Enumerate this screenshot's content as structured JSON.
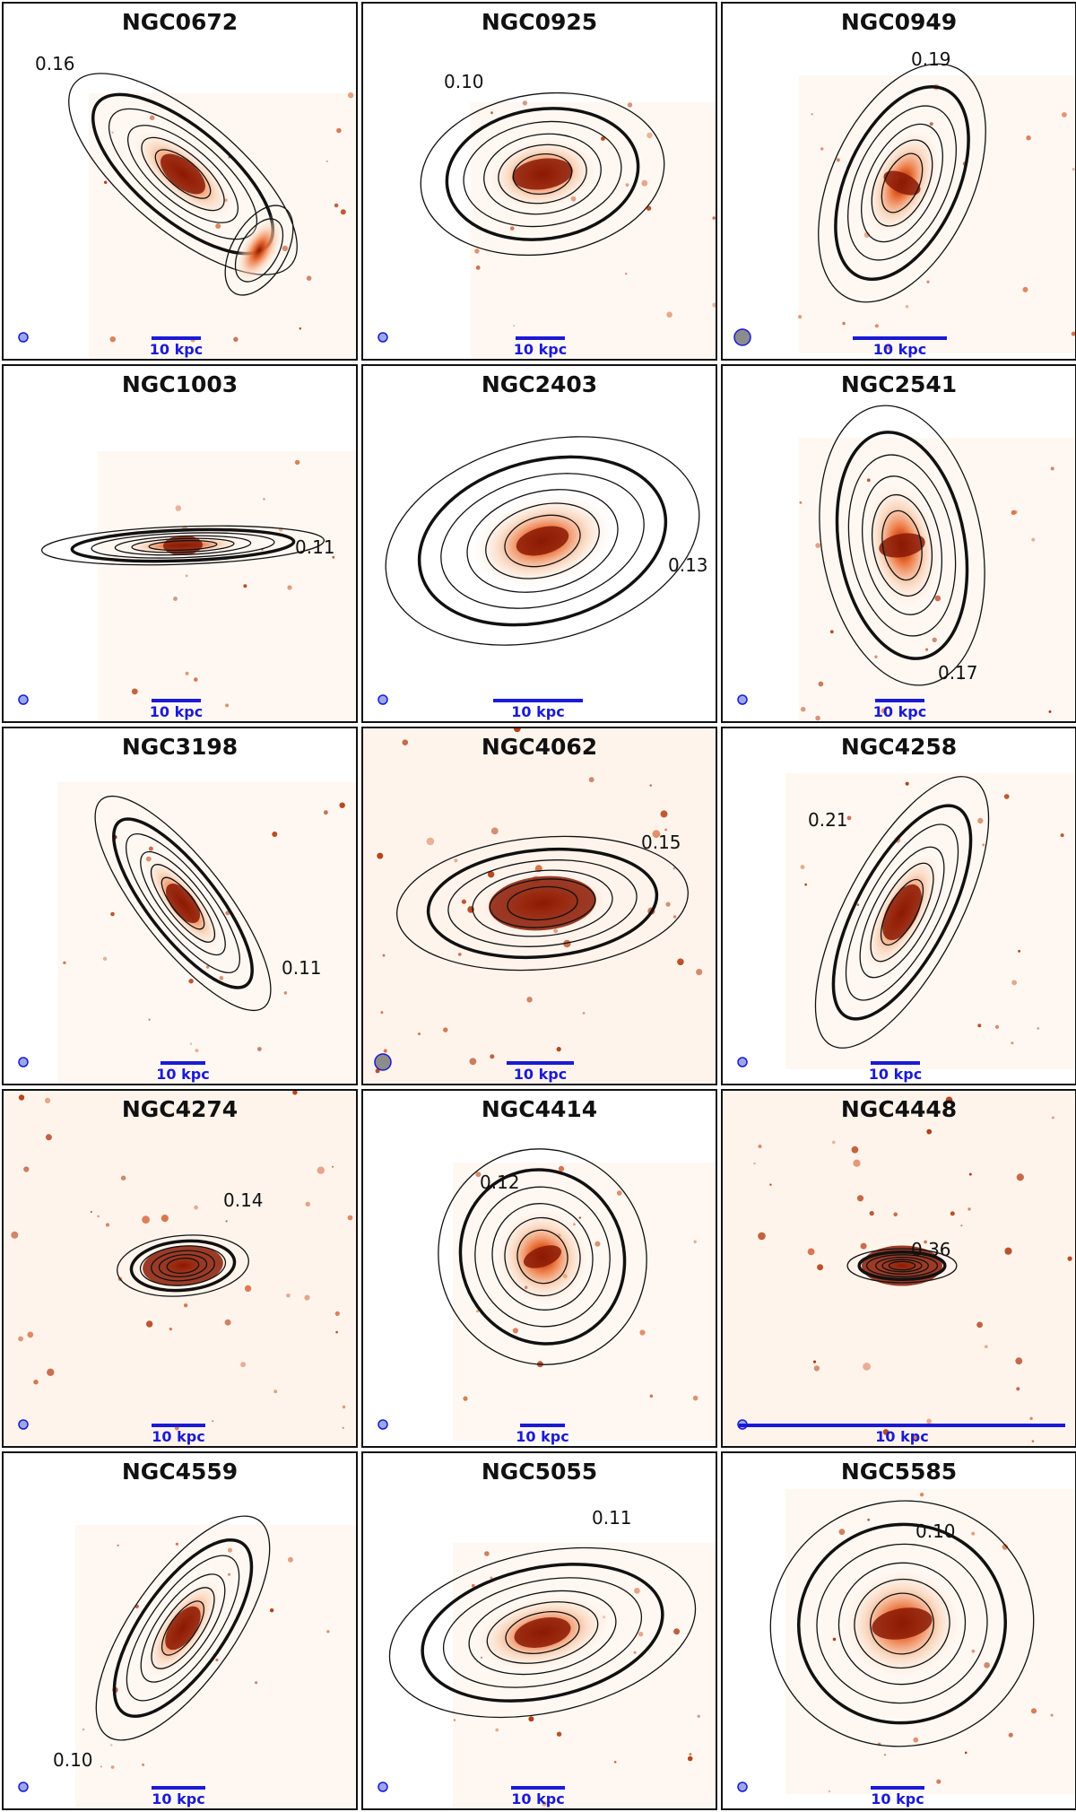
{
  "colors": {
    "core": "#8a1a05",
    "glow": "#e8642a",
    "halo": "#f8c9a8",
    "contour": "#111111",
    "scalebar": "#1a1ad6",
    "beam_blue": "#9aa8e8",
    "beam_gray": "#8c8c8c"
  },
  "panels": [
    {
      "name": "NGC0672",
      "scale_label": "10 kpc",
      "contour_label": "0.16",
      "beam": "blue"
    },
    {
      "name": "NGC0925",
      "scale_label": "10 kpc",
      "contour_label": "0.10",
      "beam": "blue"
    },
    {
      "name": "NGC0949",
      "scale_label": "10 kpc",
      "contour_label": "0.19",
      "beam": "gray"
    },
    {
      "name": "NGC1003",
      "scale_label": "10 kpc",
      "contour_label": "0.11",
      "beam": "blue"
    },
    {
      "name": "NGC2403",
      "scale_label": "10 kpc",
      "contour_label": "0.13",
      "beam": "blue"
    },
    {
      "name": "NGC2541",
      "scale_label": "10 kpc",
      "contour_label": "0.17",
      "beam": "blue"
    },
    {
      "name": "NGC3198",
      "scale_label": "10 kpc",
      "contour_label": "0.11",
      "beam": "blue"
    },
    {
      "name": "NGC4062",
      "scale_label": "10 kpc",
      "contour_label": "0.15",
      "beam": "gray"
    },
    {
      "name": "NGC4258",
      "scale_label": "10 kpc",
      "contour_label": "0.21",
      "beam": "blue"
    },
    {
      "name": "NGC4274",
      "scale_label": "10 kpc",
      "contour_label": "0.14",
      "beam": "blue"
    },
    {
      "name": "NGC4414",
      "scale_label": "10 kpc",
      "contour_label": "0.12",
      "beam": "blue"
    },
    {
      "name": "NGC4448",
      "scale_label": "10 kpc",
      "contour_label": "0.36",
      "beam": "blue"
    },
    {
      "name": "NGC4559",
      "scale_label": "10 kpc",
      "contour_label": "0.10",
      "beam": "blue"
    },
    {
      "name": "NGC5055",
      "scale_label": "10 kpc",
      "contour_label": "0.11",
      "beam": "blue"
    },
    {
      "name": "NGC5585",
      "scale_label": "10 kpc",
      "contour_label": "0.10",
      "beam": "blue"
    }
  ]
}
